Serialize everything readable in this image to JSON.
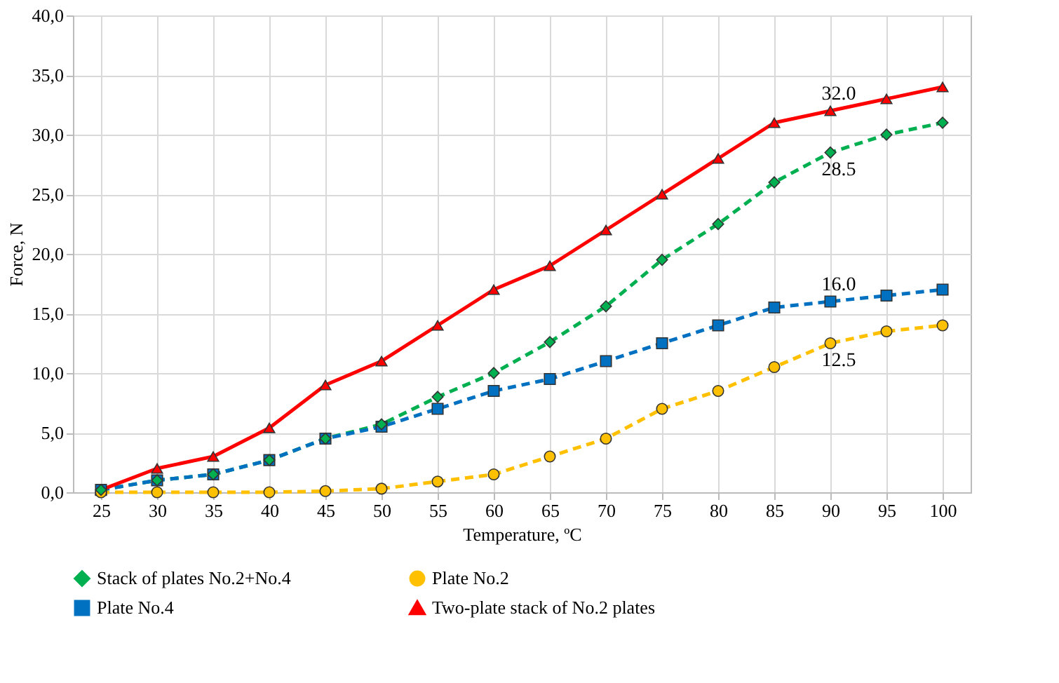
{
  "chart_data": {
    "type": "line",
    "xlabel": "Temperature, ºC",
    "ylabel": "Force, N",
    "categories": [
      "25",
      "30",
      "35",
      "40",
      "45",
      "50",
      "55",
      "60",
      "65",
      "70",
      "75",
      "80",
      "85",
      "90",
      "95",
      "100"
    ],
    "series": [
      {
        "name": "Stack of plates No.2+No.4",
        "color": "#00b050",
        "marker": "diamond",
        "line_style": "dashed",
        "values": [
          0.2,
          1.0,
          1.5,
          2.7,
          4.5,
          5.7,
          8.0,
          10.0,
          12.6,
          15.6,
          19.5,
          22.5,
          26.0,
          28.5,
          30.0,
          31.0
        ]
      },
      {
        "name": "Plate No.2",
        "color": "#ffc000",
        "marker": "circle",
        "line_style": "dashed",
        "values": [
          0.0,
          0.0,
          0.0,
          0.0,
          0.1,
          0.3,
          0.9,
          1.5,
          3.0,
          4.5,
          7.0,
          8.5,
          10.5,
          12.5,
          13.5,
          14.0
        ]
      },
      {
        "name": "Plate No.4",
        "color": "#0070c0",
        "marker": "square",
        "line_style": "dashed",
        "values": [
          0.2,
          1.0,
          1.5,
          2.7,
          4.5,
          5.5,
          7.0,
          8.5,
          9.5,
          11.0,
          12.5,
          14.0,
          15.5,
          16.0,
          16.5,
          17.0
        ]
      },
      {
        "name": "Two-plate stack of No.2 plates",
        "color": "#ff0000",
        "marker": "triangle",
        "line_style": "solid",
        "values": [
          0.2,
          2.0,
          3.0,
          5.4,
          9.0,
          11.0,
          14.0,
          17.0,
          19.0,
          22.0,
          25.0,
          28.0,
          31.0,
          32.0,
          33.0,
          34.0
        ]
      }
    ],
    "ylim": [
      0,
      40
    ],
    "yticks": [
      {
        "value": 0,
        "label": "0,0"
      },
      {
        "value": 5,
        "label": "5,0"
      },
      {
        "value": 10,
        "label": "10,0"
      },
      {
        "value": 15,
        "label": "15,0"
      },
      {
        "value": 20,
        "label": "20,0"
      },
      {
        "value": 25,
        "label": "25,0"
      },
      {
        "value": 30,
        "label": "30,0"
      },
      {
        "value": 35,
        "label": "35,0"
      },
      {
        "value": 40,
        "label": "40,0"
      }
    ],
    "annotations": [
      {
        "text": "32.0",
        "x": "90",
        "y": 32.0
      },
      {
        "text": "28.5",
        "x": "90",
        "y": 28.5
      },
      {
        "text": "16.0",
        "x": "90",
        "y": 16.0
      },
      {
        "text": "12.5",
        "x": "90",
        "y": 12.5
      }
    ],
    "grid": true,
    "legend": "bottom"
  }
}
